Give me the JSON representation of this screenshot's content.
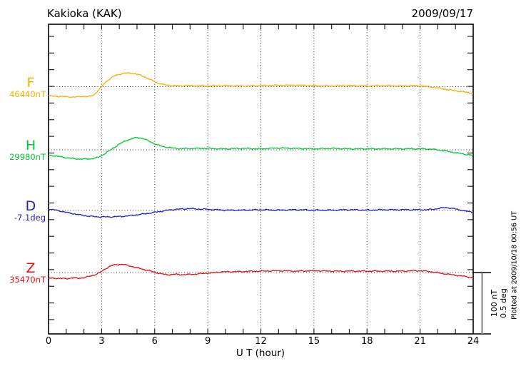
{
  "title": "Kakioka (KAK)",
  "date": "2009/09/17",
  "footer": "Plotted at 2009/10/18 00:56 UT",
  "axis": {
    "label": "U T (hour)",
    "ticks": [
      0,
      3,
      6,
      9,
      12,
      15,
      18,
      21,
      24
    ],
    "range": [
      0,
      24
    ],
    "minor_step": 1
  },
  "scalebar": {
    "line1": "100 nT",
    "line2": "0.5 deg"
  },
  "chart_data": {
    "type": "line",
    "x_unit": "hour",
    "xlim": [
      0,
      24
    ],
    "grid": "dotted vertical every 3h, dotted horizontal baseline per series",
    "series": [
      {
        "key": "F",
        "label": "F",
        "value_label": "46440nT",
        "baseline": 46440,
        "unit": "nT",
        "scale_per_bar": 100,
        "color": "#FFAA00",
        "samples": [
          [
            0,
            46424.9
          ],
          [
            0.5,
            46424.3
          ],
          [
            1,
            46423.7
          ],
          [
            1.5,
            46423.1
          ],
          [
            1.9,
            46424.3
          ],
          [
            2.2,
            46423.7
          ],
          [
            2.5,
            46426
          ],
          [
            2.75,
            46431.9
          ],
          [
            3,
            46440
          ],
          [
            3.3,
            46449.3
          ],
          [
            3.7,
            46456.9
          ],
          [
            4.1,
            46460.9
          ],
          [
            4.5,
            46462.1
          ],
          [
            4.9,
            46460.9
          ],
          [
            5.3,
            46457.4
          ],
          [
            5.7,
            46452.2
          ],
          [
            6.1,
            46447
          ],
          [
            6.5,
            46443.5
          ],
          [
            6.9,
            46442.1
          ],
          [
            7.4,
            46441.4
          ],
          [
            8,
            46441.7
          ],
          [
            9,
            46441.2
          ],
          [
            10,
            46441.7
          ],
          [
            11,
            46441.2
          ],
          [
            12,
            46441.7
          ],
          [
            13,
            46442.3
          ],
          [
            14,
            46442.3
          ],
          [
            15,
            46441.7
          ],
          [
            16,
            46441.2
          ],
          [
            17,
            46441.7
          ],
          [
            18,
            46441.2
          ],
          [
            19,
            46441.7
          ],
          [
            20,
            46441.2
          ],
          [
            20.7,
            46441.7
          ],
          [
            21.3,
            46440.6
          ],
          [
            21.8,
            46438.8
          ],
          [
            22.3,
            46436.5
          ],
          [
            22.8,
            46434.2
          ],
          [
            23.4,
            46431.9
          ],
          [
            24,
            46429
          ]
        ]
      },
      {
        "key": "H",
        "label": "H",
        "value_label": "29980nT",
        "baseline": 29980,
        "unit": "nT",
        "scale_per_bar": 100,
        "color": "#00C832",
        "samples": [
          [
            0,
            29971.3
          ],
          [
            0.5,
            29969.5
          ],
          [
            1,
            29967.2
          ],
          [
            1.5,
            29965.5
          ],
          [
            2,
            29964.9
          ],
          [
            2.4,
            29965.5
          ],
          [
            2.8,
            29967.8
          ],
          [
            3.1,
            29972.4
          ],
          [
            3.4,
            29977.7
          ],
          [
            3.7,
            29983.5
          ],
          [
            4,
            29989.3
          ],
          [
            4.4,
            29995.1
          ],
          [
            4.7,
            29998
          ],
          [
            5,
            29999.8
          ],
          [
            5.3,
            29998.6
          ],
          [
            5.7,
            29994
          ],
          [
            6.1,
            29988.7
          ],
          [
            6.5,
            29985.2
          ],
          [
            6.9,
            29983.3
          ],
          [
            7.4,
            29982.1
          ],
          [
            8,
            29982.3
          ],
          [
            9,
            29982.3
          ],
          [
            10,
            29981.7
          ],
          [
            11,
            29982.3
          ],
          [
            12,
            29981.7
          ],
          [
            13,
            29982.9
          ],
          [
            14,
            29982.3
          ],
          [
            15,
            29981.7
          ],
          [
            16,
            29982.3
          ],
          [
            17,
            29981.7
          ],
          [
            18,
            29981.7
          ],
          [
            19,
            29981.7
          ],
          [
            20,
            29981.7
          ],
          [
            21,
            29981.7
          ],
          [
            21.6,
            29981.2
          ],
          [
            22,
            29980
          ],
          [
            22.5,
            29977.7
          ],
          [
            23,
            29975.3
          ],
          [
            23.5,
            29973
          ],
          [
            24,
            29970.7
          ]
        ]
      },
      {
        "key": "D",
        "label": "D",
        "value_label": "-7.1deg",
        "baseline": -7.1,
        "unit": "deg",
        "scale_per_bar": 0.5,
        "color": "#2222CC",
        "samples": [
          [
            0,
            -7.088
          ],
          [
            0.5,
            -7.1
          ],
          [
            1,
            -7.115
          ],
          [
            1.5,
            -7.129
          ],
          [
            2,
            -7.141
          ],
          [
            2.5,
            -7.149
          ],
          [
            3,
            -7.152
          ],
          [
            3.5,
            -7.152
          ],
          [
            4,
            -7.149
          ],
          [
            4.5,
            -7.144
          ],
          [
            5,
            -7.135
          ],
          [
            5.5,
            -7.126
          ],
          [
            6,
            -7.115
          ],
          [
            6.4,
            -7.106
          ],
          [
            6.8,
            -7.097
          ],
          [
            7.2,
            -7.091
          ],
          [
            7.6,
            -7.088
          ],
          [
            8,
            -7.085
          ],
          [
            8.4,
            -7.088
          ],
          [
            9,
            -7.091
          ],
          [
            9.5,
            -7.094
          ],
          [
            10,
            -7.097
          ],
          [
            11,
            -7.097
          ],
          [
            12,
            -7.094
          ],
          [
            13,
            -7.097
          ],
          [
            14,
            -7.094
          ],
          [
            15,
            -7.097
          ],
          [
            16,
            -7.097
          ],
          [
            17,
            -7.094
          ],
          [
            18,
            -7.097
          ],
          [
            19,
            -7.094
          ],
          [
            20,
            -7.094
          ],
          [
            21,
            -7.094
          ],
          [
            21.7,
            -7.091
          ],
          [
            22.2,
            -7.08
          ],
          [
            22.5,
            -7.077
          ],
          [
            22.8,
            -7.083
          ],
          [
            23.2,
            -7.094
          ],
          [
            23.6,
            -7.106
          ],
          [
            24,
            -7.115
          ]
        ]
      },
      {
        "key": "Z",
        "label": "Z",
        "value_label": "35470nT",
        "baseline": 35470,
        "unit": "nT",
        "scale_per_bar": 100,
        "color": "#E61010",
        "samples": [
          [
            0,
            35460.7
          ],
          [
            0.5,
            35460.7
          ],
          [
            1,
            35460.1
          ],
          [
            1.4,
            35461.3
          ],
          [
            1.7,
            35460.7
          ],
          [
            2.1,
            35462.4
          ],
          [
            2.5,
            35465.3
          ],
          [
            2.9,
            35470
          ],
          [
            3.2,
            35475.8
          ],
          [
            3.5,
            35480.5
          ],
          [
            3.8,
            35482.8
          ],
          [
            4.1,
            35483.4
          ],
          [
            4.4,
            35482.2
          ],
          [
            4.8,
            35479.3
          ],
          [
            5.2,
            35476.4
          ],
          [
            5.6,
            35473.5
          ],
          [
            6,
            35470.6
          ],
          [
            6.4,
            35467.7
          ],
          [
            6.8,
            35466.5
          ],
          [
            7.2,
            35467.1
          ],
          [
            7.6,
            35466.5
          ],
          [
            8,
            35467.1
          ],
          [
            8.4,
            35467.7
          ],
          [
            8.8,
            35468.8
          ],
          [
            9.2,
            35469.4
          ],
          [
            9.6,
            35470.6
          ],
          [
            10,
            35471.2
          ],
          [
            11,
            35471.7
          ],
          [
            12,
            35472.3
          ],
          [
            13,
            35472.9
          ],
          [
            14,
            35472.3
          ],
          [
            15,
            35472.9
          ],
          [
            16,
            35472.3
          ],
          [
            17,
            35472.3
          ],
          [
            18,
            35472.3
          ],
          [
            19,
            35472.3
          ],
          [
            20,
            35472.3
          ],
          [
            20.7,
            35472.9
          ],
          [
            21.3,
            35472.3
          ],
          [
            21.8,
            35470.6
          ],
          [
            22.3,
            35468.3
          ],
          [
            22.8,
            35466.5
          ],
          [
            23.4,
            35464.2
          ],
          [
            24,
            35461.9
          ]
        ]
      }
    ]
  }
}
